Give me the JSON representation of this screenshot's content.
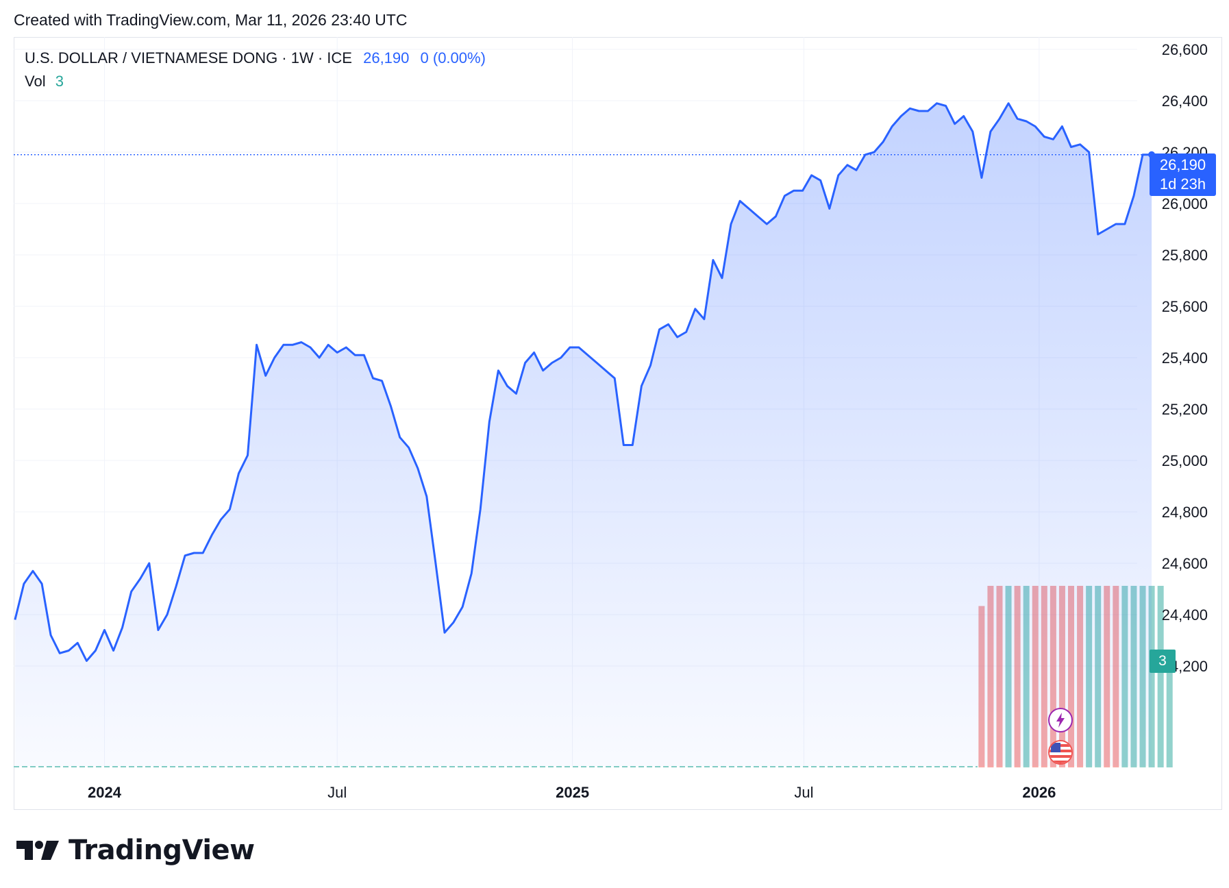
{
  "header": {
    "created_text": "Created with TradingView.com, Mar 11, 2026 23:40 UTC"
  },
  "legend": {
    "symbol": "U.S. DOLLAR / VIETNAMESE DONG · 1W · ICE",
    "price": "26,190",
    "change": "0 (0.00%)",
    "vol_label": "Vol",
    "vol_value": "3"
  },
  "price_label": {
    "price": "26,190",
    "countdown": "1d 23h"
  },
  "vol_axis_label": "3",
  "colors": {
    "line": "#2962ff",
    "up_volume": "#26a69a",
    "down_volume": "#ef5350"
  },
  "icons": [
    "lightning-event-icon",
    "us-flag-event-icon"
  ],
  "brand": {
    "name": "TradingView"
  },
  "chart_data": {
    "type": "area",
    "title": "U.S. DOLLAR / VIETNAMESE DONG · 1W · ICE",
    "ylim": [
      24000,
      26600
    ],
    "y_ticks": [
      "26,600",
      "26,400",
      "26,200",
      "26,000",
      "25,800",
      "25,600",
      "25,400",
      "25,200",
      "25,000",
      "24,800",
      "24,600",
      "24,400",
      "24,200"
    ],
    "x_ticks": [
      {
        "label": "2024",
        "bold": true,
        "date": "2024-01-01"
      },
      {
        "label": "Jul",
        "bold": false,
        "date": "2024-07-01"
      },
      {
        "label": "2025",
        "bold": true,
        "date": "2025-01-01"
      },
      {
        "label": "Jul",
        "bold": false,
        "date": "2025-07-01"
      },
      {
        "label": "2026",
        "bold": true,
        "date": "2026-01-01"
      }
    ],
    "xlim": [
      "2023-10-22",
      "2026-06-21"
    ],
    "last_price": 26190,
    "series": [
      {
        "points": [
          [
            "2023-10-23",
            24380
          ],
          [
            "2023-10-30",
            24520
          ],
          [
            "2023-11-06",
            24570
          ],
          [
            "2023-11-13",
            24520
          ],
          [
            "2023-11-20",
            24320
          ],
          [
            "2023-11-27",
            24250
          ],
          [
            "2023-12-04",
            24260
          ],
          [
            "2023-12-11",
            24290
          ],
          [
            "2023-12-18",
            24220
          ],
          [
            "2023-12-25",
            24260
          ],
          [
            "2024-01-01",
            24340
          ],
          [
            "2024-01-08",
            24260
          ],
          [
            "2024-01-15",
            24350
          ],
          [
            "2024-01-22",
            24490
          ],
          [
            "2024-01-29",
            24540
          ],
          [
            "2024-02-05",
            24600
          ],
          [
            "2024-02-12",
            24340
          ],
          [
            "2024-02-19",
            24400
          ],
          [
            "2024-02-26",
            24510
          ],
          [
            "2024-03-04",
            24630
          ],
          [
            "2024-03-11",
            24640
          ],
          [
            "2024-03-18",
            24640
          ],
          [
            "2024-03-25",
            24710
          ],
          [
            "2024-04-01",
            24770
          ],
          [
            "2024-04-08",
            24810
          ],
          [
            "2024-04-15",
            24950
          ],
          [
            "2024-04-22",
            25020
          ],
          [
            "2024-04-29",
            25450
          ],
          [
            "2024-05-06",
            25330
          ],
          [
            "2024-05-13",
            25400
          ],
          [
            "2024-05-20",
            25450
          ],
          [
            "2024-05-27",
            25450
          ],
          [
            "2024-06-03",
            25460
          ],
          [
            "2024-06-10",
            25440
          ],
          [
            "2024-06-17",
            25400
          ],
          [
            "2024-06-24",
            25450
          ],
          [
            "2024-07-01",
            25420
          ],
          [
            "2024-07-08",
            25440
          ],
          [
            "2024-07-15",
            25410
          ],
          [
            "2024-07-22",
            25410
          ],
          [
            "2024-07-29",
            25320
          ],
          [
            "2024-08-05",
            25310
          ],
          [
            "2024-08-12",
            25210
          ],
          [
            "2024-08-19",
            25090
          ],
          [
            "2024-08-26",
            25050
          ],
          [
            "2024-09-02",
            24970
          ],
          [
            "2024-09-09",
            24860
          ],
          [
            "2024-09-16",
            24600
          ],
          [
            "2024-09-23",
            24330
          ],
          [
            "2024-09-30",
            24370
          ],
          [
            "2024-10-07",
            24430
          ],
          [
            "2024-10-14",
            24560
          ],
          [
            "2024-10-21",
            24810
          ],
          [
            "2024-10-28",
            25150
          ],
          [
            "2024-11-04",
            25350
          ],
          [
            "2024-11-11",
            25290
          ],
          [
            "2024-11-18",
            25260
          ],
          [
            "2024-11-25",
            25380
          ],
          [
            "2024-12-02",
            25420
          ],
          [
            "2024-12-09",
            25350
          ],
          [
            "2024-12-16",
            25380
          ],
          [
            "2024-12-23",
            25400
          ],
          [
            "2024-12-30",
            25440
          ],
          [
            "2025-01-06",
            25440
          ],
          [
            "2025-01-13",
            25410
          ],
          [
            "2025-01-20",
            25380
          ],
          [
            "2025-01-27",
            25350
          ],
          [
            "2025-02-03",
            25320
          ],
          [
            "2025-02-10",
            25060
          ],
          [
            "2025-02-17",
            25060
          ],
          [
            "2025-02-24",
            25290
          ],
          [
            "2025-03-03",
            25370
          ],
          [
            "2025-03-10",
            25510
          ],
          [
            "2025-03-17",
            25530
          ],
          [
            "2025-03-24",
            25480
          ],
          [
            "2025-03-31",
            25500
          ],
          [
            "2025-04-07",
            25590
          ],
          [
            "2025-04-14",
            25550
          ],
          [
            "2025-04-21",
            25780
          ],
          [
            "2025-04-28",
            25710
          ],
          [
            "2025-05-05",
            25920
          ],
          [
            "2025-05-12",
            26010
          ],
          [
            "2025-05-19",
            25980
          ],
          [
            "2025-05-26",
            25950
          ],
          [
            "2025-06-02",
            25920
          ],
          [
            "2025-06-09",
            25950
          ],
          [
            "2025-06-16",
            26030
          ],
          [
            "2025-06-23",
            26050
          ],
          [
            "2025-06-30",
            26050
          ],
          [
            "2025-07-07",
            26110
          ],
          [
            "2025-07-14",
            26090
          ],
          [
            "2025-07-21",
            25980
          ],
          [
            "2025-07-28",
            26110
          ],
          [
            "2025-08-04",
            26150
          ],
          [
            "2025-08-11",
            26130
          ],
          [
            "2025-08-18",
            26190
          ],
          [
            "2025-08-25",
            26200
          ],
          [
            "2025-09-01",
            26240
          ],
          [
            "2025-09-08",
            26300
          ],
          [
            "2025-09-15",
            26340
          ],
          [
            "2025-09-22",
            26370
          ],
          [
            "2025-09-29",
            26360
          ],
          [
            "2025-10-06",
            26360
          ],
          [
            "2025-10-13",
            26390
          ],
          [
            "2025-10-20",
            26380
          ],
          [
            "2025-10-27",
            26310
          ],
          [
            "2025-11-03",
            26340
          ],
          [
            "2025-11-10",
            26280
          ],
          [
            "2025-11-17",
            26100
          ],
          [
            "2025-11-24",
            26280
          ],
          [
            "2025-12-01",
            26330
          ],
          [
            "2025-12-08",
            26390
          ],
          [
            "2025-12-15",
            26330
          ],
          [
            "2025-12-22",
            26320
          ],
          [
            "2025-12-29",
            26300
          ],
          [
            "2026-01-05",
            26260
          ],
          [
            "2026-01-12",
            26250
          ],
          [
            "2026-01-19",
            26300
          ],
          [
            "2026-01-26",
            26220
          ],
          [
            "2026-02-02",
            26230
          ],
          [
            "2026-02-09",
            26200
          ],
          [
            "2026-02-16",
            25880
          ],
          [
            "2026-02-23",
            25900
          ],
          [
            "2026-03-02",
            25920
          ],
          [
            "2026-03-09",
            25920
          ],
          [
            "2026-03-16",
            26030
          ],
          [
            "2026-03-23",
            26190
          ],
          [
            "2026-03-30",
            26190
          ]
        ]
      }
    ],
    "volume": {
      "scale_max": 3,
      "bars": [
        [
          "2025-11-17",
          2.8,
          "down"
        ],
        [
          "2025-11-24",
          3.15,
          "down"
        ],
        [
          "2025-12-01",
          3.15,
          "down"
        ],
        [
          "2025-12-08",
          3.15,
          "up"
        ],
        [
          "2025-12-15",
          3.15,
          "down"
        ],
        [
          "2025-12-22",
          3.15,
          "up"
        ],
        [
          "2025-12-29",
          3.15,
          "down"
        ],
        [
          "2026-01-05",
          3.15,
          "down"
        ],
        [
          "2026-01-12",
          3.15,
          "down"
        ],
        [
          "2026-01-19",
          3.15,
          "down"
        ],
        [
          "2026-01-26",
          3.15,
          "down"
        ],
        [
          "2026-02-02",
          3.15,
          "down"
        ],
        [
          "2026-02-09",
          3.15,
          "up"
        ],
        [
          "2026-02-16",
          3.15,
          "up"
        ],
        [
          "2026-02-23",
          3.15,
          "down"
        ],
        [
          "2026-03-02",
          3.15,
          "down"
        ],
        [
          "2026-03-09",
          3.15,
          "up"
        ],
        [
          "2026-03-16",
          3.15,
          "up"
        ],
        [
          "2026-03-23",
          3.15,
          "up"
        ],
        [
          "2026-03-30",
          3.15,
          "up"
        ],
        [
          "2026-04-06",
          3.15,
          "up"
        ],
        [
          "2026-04-13",
          2.0,
          "up"
        ]
      ]
    }
  }
}
